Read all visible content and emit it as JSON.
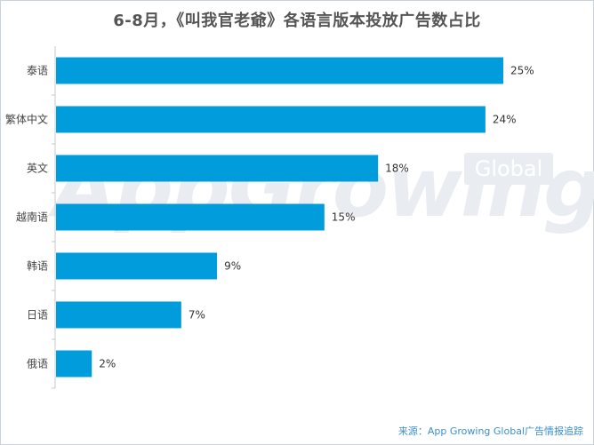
{
  "chart_data": {
    "type": "bar",
    "orientation": "horizontal",
    "title": "6-8月，《叫我官老爺》各语言版本投放广告数占比",
    "categories": [
      "泰语",
      "繁体中文",
      "英文",
      "越南语",
      "韩语",
      "日语",
      "俄语"
    ],
    "values": [
      25,
      24,
      18,
      15,
      9,
      7,
      2
    ],
    "value_labels": [
      "25%",
      "24%",
      "18%",
      "15%",
      "9%",
      "7%",
      "2%"
    ],
    "unit": "%",
    "xlim": [
      0,
      25
    ],
    "grid": false,
    "bar_color": "#009cdc"
  },
  "watermark": {
    "text": "AppGrowing",
    "badge": "Global"
  },
  "source": "来源：App Growing Global广告情报追踪"
}
